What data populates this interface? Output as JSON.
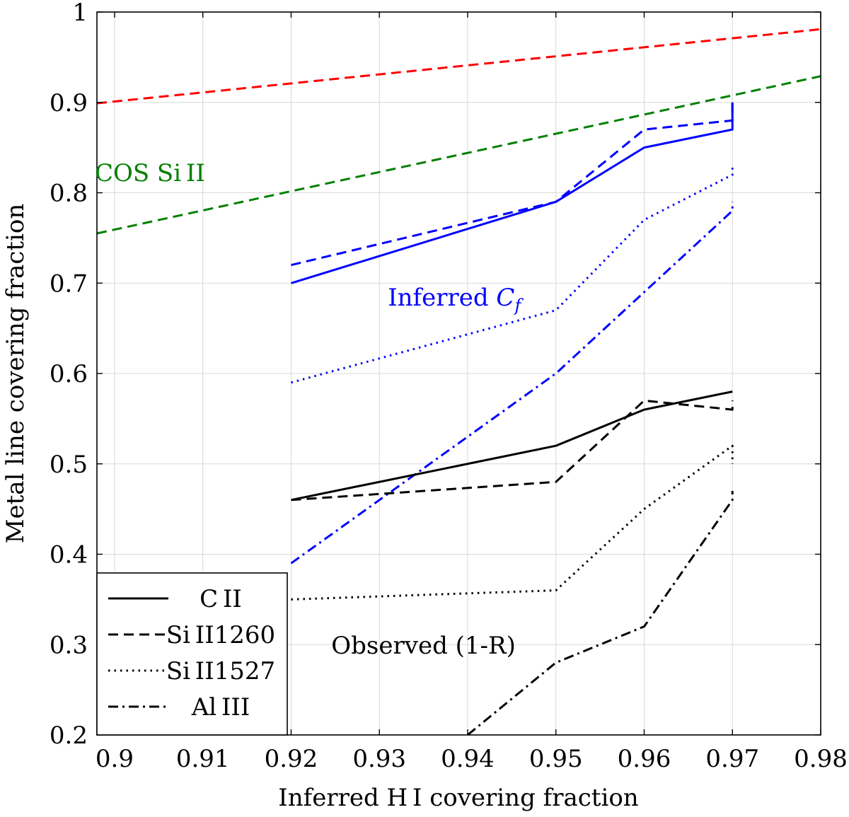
{
  "chart_data": {
    "type": "line",
    "title": "",
    "xlabel": "Inferred H I covering fraction",
    "ylabel": "Metal line covering fraction",
    "xlim": [
      0.898,
      0.98
    ],
    "ylim": [
      0.2,
      1.0
    ],
    "grid": true,
    "x_ticks": [
      0.9,
      0.91,
      0.92,
      0.93,
      0.94,
      0.95,
      0.96,
      0.97,
      0.98
    ],
    "x_tick_labels": [
      "0.9",
      "0.91",
      "0.92",
      "0.93",
      "0.94",
      "0.95",
      "0.96",
      "0.97",
      "0.98"
    ],
    "y_ticks": [
      0.2,
      0.3,
      0.4,
      0.5,
      0.6,
      0.7,
      0.8,
      0.9,
      1.0
    ],
    "y_tick_labels": [
      "0.2",
      "0.3",
      "0.4",
      "0.5",
      "0.6",
      "0.7",
      "0.8",
      "0.9",
      "1"
    ],
    "series": [
      {
        "name": "Red reference",
        "group": "reference",
        "color": "#ff0000",
        "style": "dashed",
        "x": [
          0.898,
          0.98
        ],
        "y": [
          0.899,
          0.981
        ]
      },
      {
        "name": "COS Si II",
        "group": "reference",
        "color": "#008000",
        "style": "dashed",
        "x": [
          0.898,
          0.98
        ],
        "y": [
          0.755,
          0.929
        ]
      },
      {
        "name": "Inferred C II",
        "group": "inferred",
        "color": "#0000ff",
        "style": "solid",
        "x": [
          0.92,
          0.95,
          0.96,
          0.97,
          0.97
        ],
        "y": [
          0.7,
          0.79,
          0.85,
          0.87,
          0.9
        ]
      },
      {
        "name": "Inferred Si II 1260",
        "group": "inferred",
        "color": "#0000ff",
        "style": "dashed",
        "x": [
          0.92,
          0.95,
          0.96,
          0.97,
          0.97
        ],
        "y": [
          0.72,
          0.79,
          0.87,
          0.88,
          0.9
        ]
      },
      {
        "name": "Inferred Si II 1527",
        "group": "inferred",
        "color": "#0000ff",
        "style": "dotted",
        "x": [
          0.92,
          0.95,
          0.96,
          0.97,
          0.97
        ],
        "y": [
          0.59,
          0.67,
          0.77,
          0.82,
          0.83
        ]
      },
      {
        "name": "Inferred Al III",
        "group": "inferred",
        "color": "#0000ff",
        "style": "dashdot",
        "x": [
          0.92,
          0.95,
          0.96,
          0.97,
          0.97
        ],
        "y": [
          0.39,
          0.6,
          0.69,
          0.78,
          0.79
        ]
      },
      {
        "name": "Observed C II",
        "group": "observed",
        "color": "#000000",
        "style": "solid",
        "x": [
          0.92,
          0.95,
          0.96,
          0.97
        ],
        "y": [
          0.46,
          0.52,
          0.56,
          0.58
        ]
      },
      {
        "name": "Observed Si II 1260",
        "group": "observed",
        "color": "#000000",
        "style": "dashed",
        "x": [
          0.92,
          0.95,
          0.96,
          0.97,
          0.97
        ],
        "y": [
          0.46,
          0.48,
          0.57,
          0.56,
          0.57
        ]
      },
      {
        "name": "Observed Si II 1527",
        "group": "observed",
        "color": "#000000",
        "style": "dotted",
        "x": [
          0.92,
          0.95,
          0.96,
          0.97,
          0.97
        ],
        "y": [
          0.35,
          0.36,
          0.45,
          0.52,
          0.5
        ]
      },
      {
        "name": "Observed Al III",
        "group": "observed",
        "color": "#000000",
        "style": "dashdot",
        "x": [
          0.94,
          0.95,
          0.96,
          0.97,
          0.97
        ],
        "y": [
          0.2,
          0.28,
          0.32,
          0.46,
          0.47
        ]
      }
    ],
    "legend": {
      "placement": "bottom-left",
      "entries": [
        {
          "label": "C II",
          "style": "solid",
          "color": "#000000"
        },
        {
          "label": "Si II1260",
          "style": "dashed",
          "color": "#000000"
        },
        {
          "label": "Si II1527",
          "style": "dotted",
          "color": "#000000"
        },
        {
          "label": "Al III",
          "style": "dashdot",
          "color": "#000000"
        }
      ]
    },
    "annotations": [
      {
        "text": "COS Si II",
        "color": "#008000",
        "x": 0.904,
        "y": 0.813
      },
      {
        "text": "Inferred Cf",
        "color": "#0000ff",
        "x": 0.9385,
        "y": 0.675
      },
      {
        "text": "Observed (1-R)",
        "color": "#000000",
        "x": 0.935,
        "y": 0.29
      }
    ]
  }
}
